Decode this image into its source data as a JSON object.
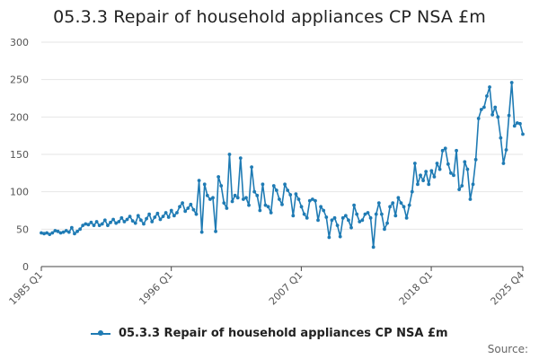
{
  "chart_data": {
    "type": "line",
    "title": "05.3.3 Repair of household appliances CP NSA £m",
    "xlabel": "",
    "ylabel": "",
    "ylim": [
      0,
      300
    ],
    "yticks": [
      0,
      50,
      100,
      150,
      200,
      250,
      300
    ],
    "x_range": [
      "1985 Q1",
      "2025 Q4"
    ],
    "xticks": [
      "1985 Q1",
      "1996 Q1",
      "2007 Q1",
      "2018 Q1",
      "2025 Q4"
    ],
    "grid": true,
    "legend_position": "bottom",
    "series": [
      {
        "name": "05.3.3 Repair of household appliances CP NSA £m",
        "color": "#1f7bb4",
        "values": [
          45,
          44,
          45,
          43,
          45,
          48,
          47,
          45,
          46,
          48,
          46,
          52,
          44,
          47,
          50,
          55,
          57,
          56,
          59,
          55,
          60,
          55,
          57,
          62,
          55,
          59,
          63,
          58,
          60,
          65,
          60,
          63,
          67,
          61,
          58,
          68,
          62,
          57,
          64,
          70,
          60,
          66,
          71,
          63,
          67,
          72,
          66,
          75,
          68,
          72,
          80,
          85,
          74,
          78,
          83,
          76,
          70,
          115,
          46,
          110,
          95,
          90,
          92,
          47,
          120,
          108,
          85,
          78,
          150,
          87,
          95,
          92,
          145,
          90,
          92,
          82,
          133,
          100,
          95,
          75,
          110,
          82,
          80,
          72,
          108,
          102,
          90,
          83,
          110,
          102,
          96,
          68,
          97,
          90,
          80,
          70,
          65,
          88,
          90,
          88,
          62,
          80,
          75,
          66,
          39,
          62,
          65,
          55,
          40,
          65,
          68,
          62,
          52,
          82,
          70,
          60,
          62,
          70,
          72,
          65,
          26,
          70,
          85,
          70,
          50,
          58,
          80,
          85,
          68,
          92,
          85,
          80,
          65,
          82,
          100,
          138,
          110,
          122,
          115,
          127,
          110,
          128,
          120,
          138,
          130,
          155,
          158,
          137,
          125,
          122,
          155,
          103,
          108,
          140,
          130,
          90,
          110,
          143,
          198,
          210,
          213,
          228,
          240,
          203,
          213,
          200,
          172,
          138,
          156,
          202,
          246,
          188,
          192,
          191,
          177
        ]
      }
    ],
    "credit": "Source:"
  }
}
